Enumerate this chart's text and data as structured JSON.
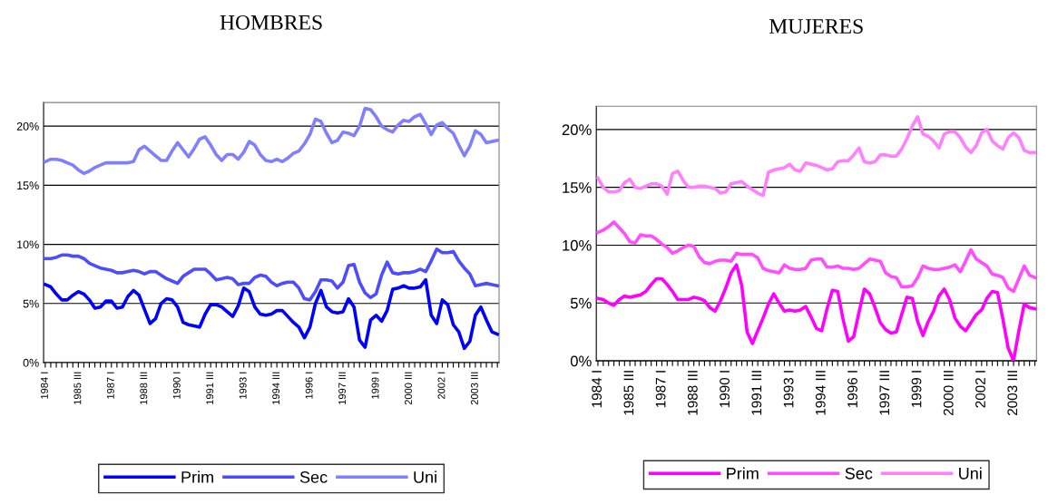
{
  "chart_data": [
    {
      "type": "line",
      "title": "HOMBRES",
      "categories": [
        "1984 I",
        null,
        null,
        null,
        null,
        null,
        "1985 III",
        null,
        null,
        null,
        null,
        null,
        "1987 I",
        null,
        null,
        null,
        null,
        null,
        "1988 III",
        null,
        null,
        null,
        null,
        null,
        "1990 I",
        null,
        null,
        null,
        null,
        null,
        "1991 III",
        null,
        null,
        null,
        null,
        null,
        "1993 I",
        null,
        null,
        null,
        null,
        null,
        "1994 III",
        null,
        null,
        null,
        null,
        null,
        "1996 I",
        null,
        null,
        null,
        null,
        null,
        "1997 III",
        null,
        null,
        null,
        null,
        null,
        "1999 I",
        null,
        null,
        null,
        null,
        null,
        "2000 III",
        null,
        null,
        null,
        null,
        null,
        "2002 I",
        null,
        null,
        null,
        null,
        null,
        "2003 III",
        null,
        null,
        null,
        null
      ],
      "series": [
        {
          "name": "Prim",
          "color": "#0000ff",
          "values": [
            6.6,
            6.4,
            5.8,
            5.3,
            5.3,
            5.7,
            6.0,
            5.8,
            5.3,
            4.6,
            4.7,
            5.2,
            5.2,
            4.6,
            4.7,
            5.6,
            6.1,
            5.7,
            4.5,
            3.3,
            3.7,
            5.0,
            5.4,
            5.3,
            4.7,
            3.4,
            3.2,
            3.1,
            3.0,
            4.1,
            4.9,
            4.9,
            4.7,
            4.3,
            3.9,
            4.8,
            6.3,
            6.0,
            4.7,
            4.1,
            4.0,
            4.1,
            4.4,
            4.4,
            3.9,
            3.4,
            3.0,
            2.1,
            3.0,
            5.0,
            6.1,
            4.7,
            4.3,
            4.2,
            4.3,
            5.4,
            4.7,
            1.9,
            1.3,
            3.6,
            4.0,
            3.5,
            4.4,
            6.2,
            6.3,
            6.5,
            6.3,
            6.3,
            6.4,
            7.0,
            4.0,
            3.3,
            5.3,
            4.9,
            3.2,
            2.6,
            1.2,
            1.8,
            4.0,
            4.7,
            3.6,
            2.6,
            2.4
          ]
        },
        {
          "name": "Sec",
          "color": "#4d4dff",
          "values": [
            8.8,
            8.8,
            8.9,
            9.1,
            9.1,
            9.0,
            9.0,
            8.8,
            8.4,
            8.2,
            8.0,
            7.9,
            7.8,
            7.6,
            7.6,
            7.7,
            7.8,
            7.7,
            7.5,
            7.7,
            7.7,
            7.4,
            7.1,
            6.9,
            6.7,
            7.3,
            7.6,
            7.9,
            7.9,
            7.9,
            7.5,
            7.0,
            7.1,
            7.2,
            7.1,
            6.6,
            6.7,
            6.7,
            7.2,
            7.4,
            7.3,
            6.8,
            6.5,
            6.7,
            6.8,
            6.8,
            6.3,
            5.4,
            5.3,
            6.0,
            7.0,
            7.0,
            6.9,
            6.3,
            6.8,
            8.2,
            8.3,
            6.8,
            5.9,
            5.5,
            5.8,
            7.4,
            8.5,
            7.6,
            7.5,
            7.6,
            7.6,
            7.7,
            7.9,
            7.7,
            8.6,
            9.6,
            9.3,
            9.3,
            9.4,
            8.6,
            8.0,
            7.5,
            6.5,
            6.6,
            6.7,
            6.6,
            6.5
          ]
        },
        {
          "name": "Uni",
          "color": "#8080ff",
          "values": [
            17.0,
            17.2,
            17.2,
            17.1,
            16.9,
            16.7,
            16.3,
            16.0,
            16.2,
            16.5,
            16.7,
            16.9,
            16.9,
            16.9,
            16.9,
            16.9,
            17.0,
            18.0,
            18.3,
            17.9,
            17.5,
            17.1,
            17.1,
            17.9,
            18.6,
            18.0,
            17.4,
            18.1,
            18.9,
            19.1,
            18.4,
            17.6,
            17.1,
            17.6,
            17.6,
            17.2,
            17.8,
            18.7,
            18.4,
            17.6,
            17.1,
            17.0,
            17.2,
            17.0,
            17.3,
            17.7,
            17.9,
            18.5,
            19.3,
            20.6,
            20.4,
            19.4,
            18.6,
            18.8,
            19.5,
            19.4,
            19.2,
            20.0,
            21.5,
            21.4,
            20.8,
            20.0,
            19.7,
            19.5,
            20.1,
            20.5,
            20.4,
            20.8,
            21.0,
            20.2,
            19.3,
            20.1,
            20.3,
            19.8,
            19.4,
            18.4,
            17.5,
            18.3,
            19.6,
            19.3,
            18.6,
            18.7,
            18.8
          ]
        }
      ],
      "ylim": [
        0,
        22
      ],
      "yticks": [
        {
          "value": 0,
          "label": "0%"
        },
        {
          "value": 5,
          "label": "5%"
        },
        {
          "value": 10,
          "label": "10%"
        },
        {
          "value": 15,
          "label": "15%"
        },
        {
          "value": 20,
          "label": "20%"
        }
      ],
      "grid": "y",
      "legend": "bottom",
      "marker": "none",
      "line_style": "solid"
    },
    {
      "type": "line",
      "title": "MUJERES",
      "categories": [
        "1984 I",
        null,
        null,
        null,
        null,
        null,
        "1985 III",
        null,
        null,
        null,
        null,
        null,
        "1987 I",
        null,
        null,
        null,
        null,
        null,
        "1988 III",
        null,
        null,
        null,
        null,
        null,
        "1990 I",
        null,
        null,
        null,
        null,
        null,
        "1991 III",
        null,
        null,
        null,
        null,
        null,
        "1993 I",
        null,
        null,
        null,
        null,
        null,
        "1994 III",
        null,
        null,
        null,
        null,
        null,
        "1996 I",
        null,
        null,
        null,
        null,
        null,
        "1997 III",
        null,
        null,
        null,
        null,
        null,
        "1999 I",
        null,
        null,
        null,
        null,
        null,
        "2000 III",
        null,
        null,
        null,
        null,
        null,
        "2002 I",
        null,
        null,
        null,
        null,
        null,
        "2003 III",
        null,
        null,
        null,
        null
      ],
      "series": [
        {
          "name": "Prim",
          "color": "#ff00ff",
          "values": [
            5.4,
            5.3,
            5.0,
            4.8,
            5.3,
            5.6,
            5.5,
            5.6,
            5.7,
            6.0,
            6.6,
            7.1,
            7.1,
            6.6,
            6.0,
            5.3,
            5.3,
            5.3,
            5.5,
            5.4,
            5.2,
            4.6,
            4.3,
            5.2,
            6.3,
            7.6,
            8.3,
            6.5,
            2.5,
            1.5,
            2.6,
            3.7,
            4.9,
            5.8,
            5.0,
            4.3,
            4.4,
            4.3,
            4.4,
            4.7,
            3.8,
            2.8,
            2.6,
            4.5,
            6.1,
            6.0,
            3.6,
            1.7,
            2.1,
            4.2,
            6.2,
            5.8,
            4.6,
            3.3,
            2.7,
            2.4,
            2.5,
            4.0,
            5.5,
            5.4,
            3.4,
            2.2,
            3.4,
            4.3,
            5.6,
            6.2,
            5.3,
            3.7,
            3.0,
            2.6,
            3.3,
            4.0,
            4.4,
            5.4,
            6.0,
            5.9,
            3.6,
            1.1,
            0.0,
            2.6,
            4.9,
            4.6,
            4.5
          ]
        },
        {
          "name": "Sec",
          "color": "#ff4dff",
          "values": [
            11.1,
            11.3,
            11.6,
            12.0,
            11.5,
            11.0,
            10.3,
            10.2,
            10.9,
            10.8,
            10.8,
            10.5,
            10.1,
            9.8,
            9.3,
            9.5,
            9.8,
            10.0,
            9.9,
            9.0,
            8.5,
            8.4,
            8.6,
            8.7,
            8.7,
            8.6,
            9.3,
            9.2,
            9.2,
            9.2,
            8.9,
            8.0,
            7.8,
            7.7,
            7.6,
            8.3,
            8.0,
            7.9,
            7.9,
            8.0,
            8.7,
            8.8,
            8.8,
            8.1,
            8.1,
            8.2,
            8.0,
            8.0,
            7.9,
            8.0,
            8.4,
            8.8,
            8.7,
            8.6,
            7.6,
            7.3,
            7.2,
            6.4,
            6.4,
            6.5,
            7.2,
            8.2,
            8.0,
            7.9,
            7.9,
            8.0,
            8.1,
            8.3,
            7.7,
            8.6,
            9.6,
            8.8,
            8.5,
            8.2,
            7.5,
            7.4,
            7.2,
            6.3,
            6.0,
            7.1,
            8.2,
            7.4,
            7.2
          ]
        },
        {
          "name": "Uni",
          "color": "#ff80ff",
          "values": [
            15.8,
            15.0,
            14.6,
            14.6,
            14.7,
            15.4,
            15.7,
            15.0,
            14.9,
            15.1,
            15.3,
            15.3,
            15.1,
            14.4,
            16.2,
            16.4,
            15.6,
            15.0,
            15.0,
            15.1,
            15.1,
            15.0,
            14.9,
            14.5,
            14.6,
            15.3,
            15.4,
            15.5,
            15.1,
            14.8,
            14.5,
            14.3,
            16.3,
            16.5,
            16.6,
            16.7,
            17.0,
            16.5,
            16.4,
            17.1,
            17.0,
            16.9,
            16.7,
            16.5,
            16.6,
            17.2,
            17.3,
            17.3,
            17.8,
            18.4,
            17.2,
            17.1,
            17.2,
            17.8,
            17.8,
            17.7,
            17.7,
            18.3,
            19.2,
            20.3,
            21.1,
            19.6,
            19.4,
            19.0,
            18.4,
            19.6,
            19.8,
            19.8,
            19.3,
            18.5,
            18.0,
            18.6,
            19.7,
            20.0,
            19.0,
            18.6,
            18.3,
            19.3,
            19.7,
            19.3,
            18.2,
            18.0,
            18.0
          ]
        }
      ],
      "ylim": [
        0,
        22
      ],
      "yticks": [
        {
          "value": 0,
          "label": "0%"
        },
        {
          "value": 5,
          "label": "5%"
        },
        {
          "value": 10,
          "label": "10%"
        },
        {
          "value": 15,
          "label": "15%"
        },
        {
          "value": 20,
          "label": "20%"
        }
      ],
      "grid": "y",
      "legend": "bottom",
      "marker": "none",
      "line_style": "solid"
    }
  ]
}
